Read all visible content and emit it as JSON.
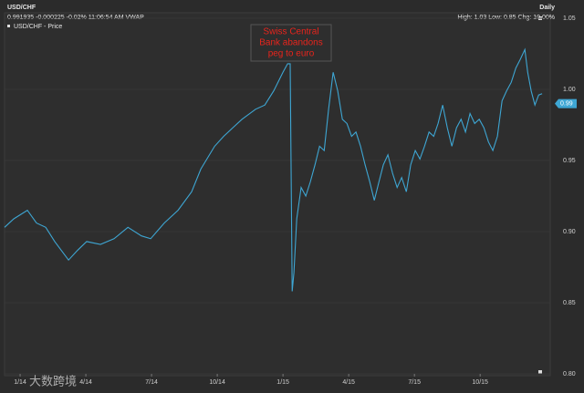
{
  "chart_data": {
    "type": "line",
    "title": "USD/CHF",
    "frequency": "Daily",
    "quote_line": "0.991935 -0.000225 -0.02% 11:06:54 AM VWAP",
    "stats_line": "High: 1.03 Low: 0.85 Chg: 10.00%",
    "annotation": [
      "Swiss Central",
      "Bank abandons",
      "peg to euro"
    ],
    "watermark": "大数跨境",
    "last_price": 0.99,
    "grid": true,
    "xlim": [
      -0.71,
      24.2
    ],
    "ylim": [
      0.8,
      1.05
    ],
    "xticks": [
      {
        "value": 0,
        "label": "1/14"
      },
      {
        "value": 3,
        "label": "4/14"
      },
      {
        "value": 6,
        "label": "7/14"
      },
      {
        "value": 9,
        "label": "10/14"
      },
      {
        "value": 12,
        "label": "1/15"
      },
      {
        "value": 15,
        "label": "4/15"
      },
      {
        "value": 18,
        "label": "7/15"
      },
      {
        "value": 21,
        "label": "10/15"
      }
    ],
    "yticks": [
      1.05,
      {
        "value": 1.0,
        "label": "1.00"
      },
      0.95,
      {
        "value": 0.9,
        "label": "0.90"
      },
      0.85,
      {
        "value": 0.8,
        "label": "0.80"
      }
    ],
    "series": [
      {
        "name": "USD/CHF - Price",
        "color": "#3ea6d3",
        "x": [
          -0.71,
          -0.29,
          0.33,
          0.75,
          1.17,
          1.58,
          2.21,
          2.63,
          3.04,
          3.67,
          4.29,
          4.92,
          5.54,
          5.96,
          6.58,
          7.21,
          7.83,
          8.25,
          8.88,
          9.29,
          9.71,
          10.13,
          10.75,
          11.17,
          11.58,
          12.0,
          12.21,
          12.33,
          12.42,
          12.5,
          12.63,
          12.83,
          13.04,
          13.25,
          13.46,
          13.67,
          13.88,
          14.08,
          14.29,
          14.5,
          14.71,
          14.92,
          15.13,
          15.33,
          15.54,
          15.75,
          15.96,
          16.17,
          16.38,
          16.58,
          16.79,
          17.0,
          17.21,
          17.42,
          17.63,
          17.83,
          18.04,
          18.25,
          18.46,
          18.67,
          18.88,
          19.08,
          19.29,
          19.5,
          19.71,
          19.92,
          20.13,
          20.33,
          20.54,
          20.75,
          20.96,
          21.17,
          21.38,
          21.58,
          21.79,
          22.0,
          22.21,
          22.42,
          22.63,
          22.83,
          23.04,
          23.17,
          23.33,
          23.5,
          23.67,
          23.83
        ],
        "values": [
          0.903,
          0.909,
          0.915,
          0.906,
          0.903,
          0.893,
          0.88,
          0.887,
          0.893,
          0.891,
          0.895,
          0.903,
          0.897,
          0.895,
          0.906,
          0.915,
          0.928,
          0.944,
          0.96,
          0.967,
          0.973,
          0.979,
          0.986,
          0.989,
          0.999,
          1.012,
          1.018,
          1.018,
          0.858,
          0.871,
          0.909,
          0.931,
          0.925,
          0.935,
          0.947,
          0.96,
          0.957,
          0.986,
          1.012,
          0.999,
          0.979,
          0.976,
          0.967,
          0.97,
          0.96,
          0.947,
          0.935,
          0.922,
          0.935,
          0.947,
          0.954,
          0.941,
          0.931,
          0.938,
          0.928,
          0.947,
          0.957,
          0.951,
          0.96,
          0.97,
          0.967,
          0.976,
          0.989,
          0.973,
          0.96,
          0.973,
          0.979,
          0.97,
          0.983,
          0.976,
          0.979,
          0.973,
          0.963,
          0.957,
          0.967,
          0.992,
          0.999,
          1.005,
          1.015,
          1.021,
          1.028,
          1.012,
          0.999,
          0.989,
          0.996,
          0.997
        ]
      }
    ]
  }
}
